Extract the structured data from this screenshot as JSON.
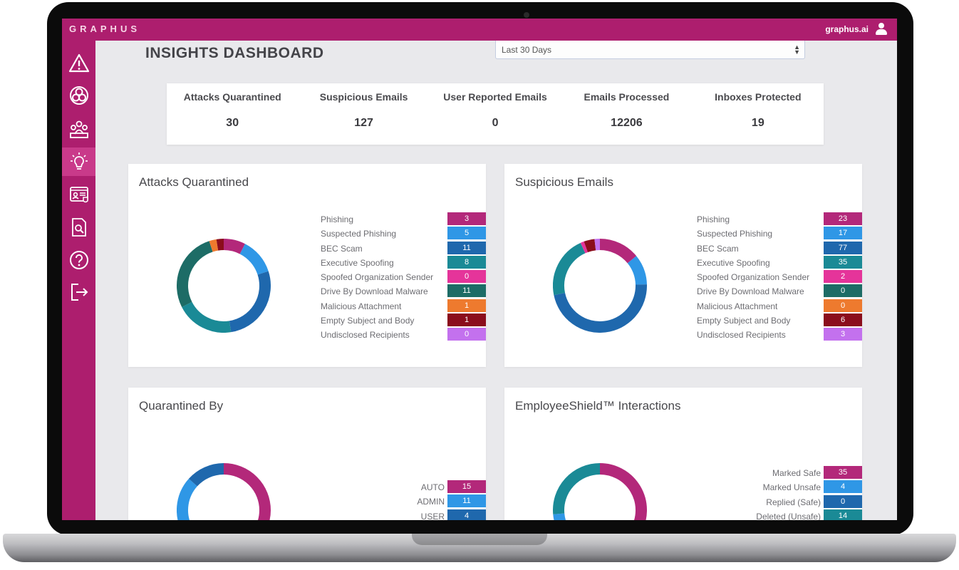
{
  "app": {
    "logo": "GRAPHUS",
    "account": "graphus.ai"
  },
  "sidebar": {
    "items": [
      {
        "icon": "alert-triangle-icon"
      },
      {
        "icon": "biohazard-icon"
      },
      {
        "icon": "users-group-icon"
      },
      {
        "icon": "lightbulb-icon",
        "active": true
      },
      {
        "icon": "shielded-users-icon"
      },
      {
        "icon": "document-search-icon"
      },
      {
        "icon": "help-circle-icon"
      },
      {
        "icon": "logout-icon"
      }
    ]
  },
  "header": {
    "title": "INSIGHTS DASHBOARD",
    "range": "Last 30 Days"
  },
  "stats": [
    {
      "label": "Attacks Quarantined",
      "value": "30"
    },
    {
      "label": "Suspicious Emails",
      "value": "127"
    },
    {
      "label": "User Reported Emails",
      "value": "0"
    },
    {
      "label": "Emails Processed",
      "value": "12206"
    },
    {
      "label": "Inboxes Protected",
      "value": "19"
    }
  ],
  "colors": {
    "brand": "#ad1e6e",
    "phishing": "#b3287a",
    "suspected_phishing": "#2f97e6",
    "bec_scam": "#1f68ad",
    "executive_spoofing": "#1a8a96",
    "spoofed_org_sender": "#e5349a",
    "drive_by_download": "#1d6c66",
    "malicious_attachment": "#ee7a2e",
    "empty_subject": "#8b0d1c",
    "undisclosed_recipients": "#c371ee"
  },
  "cards": {
    "attacks": {
      "title": "Attacks Quarantined",
      "items": [
        {
          "label": "Phishing",
          "value": 3,
          "color": "#b3287a"
        },
        {
          "label": "Suspected Phishing",
          "value": 5,
          "color": "#2f97e6"
        },
        {
          "label": "BEC Scam",
          "value": 11,
          "color": "#1f68ad"
        },
        {
          "label": "Executive Spoofing",
          "value": 8,
          "color": "#1a8a96"
        },
        {
          "label": "Spoofed Organization Sender",
          "value": 0,
          "color": "#e5349a"
        },
        {
          "label": "Drive By Download Malware",
          "value": 11,
          "color": "#1d6c66"
        },
        {
          "label": "Malicious Attachment",
          "value": 1,
          "color": "#ee7a2e"
        },
        {
          "label": "Empty Subject and Body",
          "value": 1,
          "color": "#8b0d1c"
        },
        {
          "label": "Undisclosed Recipients",
          "value": 0,
          "color": "#c371ee"
        }
      ]
    },
    "suspicious": {
      "title": "Suspicious Emails",
      "items": [
        {
          "label": "Phishing",
          "value": 23,
          "color": "#b3287a"
        },
        {
          "label": "Suspected Phishing",
          "value": 17,
          "color": "#2f97e6"
        },
        {
          "label": "BEC Scam",
          "value": 77,
          "color": "#1f68ad"
        },
        {
          "label": "Executive Spoofing",
          "value": 35,
          "color": "#1a8a96"
        },
        {
          "label": "Spoofed Organization Sender",
          "value": 2,
          "color": "#e5349a"
        },
        {
          "label": "Drive By Download Malware",
          "value": 0,
          "color": "#1d6c66"
        },
        {
          "label": "Malicious Attachment",
          "value": 0,
          "color": "#ee7a2e"
        },
        {
          "label": "Empty Subject and Body",
          "value": 6,
          "color": "#8b0d1c"
        },
        {
          "label": "Undisclosed Recipients",
          "value": 3,
          "color": "#c371ee"
        }
      ]
    },
    "quarantined_by": {
      "title": "Quarantined By",
      "items": [
        {
          "label": "AUTO",
          "value": 15,
          "color": "#b3287a"
        },
        {
          "label": "ADMIN",
          "value": 11,
          "color": "#2f97e6"
        },
        {
          "label": "USER",
          "value": 4,
          "color": "#1f68ad"
        }
      ]
    },
    "employeeshield": {
      "title": "EmployeeShield™ Interactions",
      "items": [
        {
          "label": "Marked Safe",
          "value": 35,
          "color": "#b3287a"
        },
        {
          "label": "Marked Unsafe",
          "value": 4,
          "color": "#2f97e6"
        },
        {
          "label": "Replied (Safe)",
          "value": 0,
          "color": "#1f68ad"
        },
        {
          "label": "Deleted (Unsafe)",
          "value": 14,
          "color": "#1a8a96"
        }
      ]
    }
  },
  "chart_data": [
    {
      "type": "pie",
      "title": "Attacks Quarantined",
      "categories": [
        "Phishing",
        "Suspected Phishing",
        "BEC Scam",
        "Executive Spoofing",
        "Spoofed Organization Sender",
        "Drive By Download Malware",
        "Malicious Attachment",
        "Empty Subject and Body",
        "Undisclosed Recipients"
      ],
      "values": [
        3,
        5,
        11,
        8,
        0,
        11,
        1,
        1,
        0
      ]
    },
    {
      "type": "pie",
      "title": "Suspicious Emails",
      "categories": [
        "Phishing",
        "Suspected Phishing",
        "BEC Scam",
        "Executive Spoofing",
        "Spoofed Organization Sender",
        "Drive By Download Malware",
        "Malicious Attachment",
        "Empty Subject and Body",
        "Undisclosed Recipients"
      ],
      "values": [
        23,
        17,
        77,
        35,
        2,
        0,
        0,
        6,
        3
      ]
    },
    {
      "type": "pie",
      "title": "Quarantined By",
      "categories": [
        "AUTO",
        "ADMIN",
        "USER"
      ],
      "values": [
        15,
        11,
        4
      ]
    },
    {
      "type": "pie",
      "title": "EmployeeShield™ Interactions",
      "categories": [
        "Marked Safe",
        "Marked Unsafe",
        "Replied (Safe)",
        "Deleted (Unsafe)"
      ],
      "values": [
        35,
        4,
        0,
        14
      ]
    }
  ]
}
